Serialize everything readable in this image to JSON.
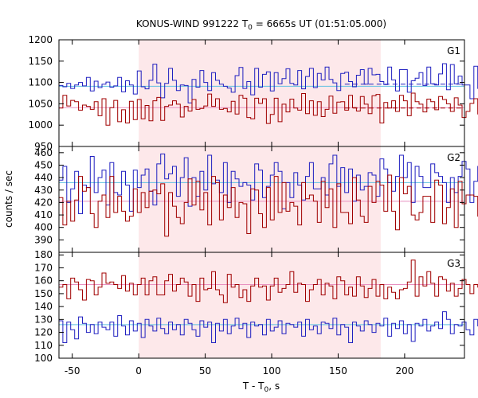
{
  "title": {
    "main": "KONUS-WIND 991222 T",
    "sub": "0",
    "rest": " = 6665s UT (01:51:05.000)"
  },
  "ylabel": "counts / sec",
  "xlabel": {
    "main": "T - T",
    "sub": "0",
    "rest": ", s"
  },
  "colors": {
    "blue": "#2020c0",
    "red": "#a00000",
    "cyan": "#60c0e0",
    "pink": "#e890c0",
    "shade": "#fde8ea"
  },
  "chart_data": {
    "type": "line",
    "x_ticks": [
      -50,
      0,
      50,
      100,
      150,
      200
    ],
    "xlim": [
      -60,
      245
    ],
    "shade_interval": [
      0,
      182
    ],
    "panels": [
      {
        "label": "G1",
        "ylim": [
          950,
          1200
        ],
        "yticks": [
          950,
          1000,
          1050,
          1100,
          1150,
          1200
        ],
        "show_top_tick": true,
        "series": [
          {
            "color": "blue",
            "step": 2.944,
            "start": -60,
            "values": [
              1093,
              1090,
              1098,
              1086,
              1094,
              1100,
              1092,
              1112,
              1080,
              1103,
              1088,
              1096,
              1101,
              1089,
              1092,
              1112,
              1078,
              1104,
              1094,
              1073,
              1127,
              1090,
              1085,
              1105,
              1143,
              1099,
              1064,
              1098,
              1133,
              1105,
              1081,
              1094,
              1093,
              1052,
              1107,
              1089,
              1128,
              1100,
              1081,
              1123,
              1105,
              1096,
              1091,
              1087,
              1077,
              1116,
              1135,
              1086,
              1102,
              1071,
              1133,
              1089,
              1119,
              1125,
              1080,
              1123,
              1097,
              1109,
              1132,
              1098,
              1094,
              1128,
              1085,
              1114,
              1133,
              1088,
              1121,
              1106,
              1136,
              1107,
              1099,
              1081,
              1121,
              1124,
              1102,
              1090,
              1117,
              1130,
              1096,
              1133,
              1118,
              1119,
              1102,
              1095,
              1136,
              1106,
              1080,
              1130,
              1130,
              1077,
              1104,
              1110,
              1123,
              1093,
              1136,
              1097,
              1094,
              1120,
              1144,
              1083,
              1142,
              1097,
              1115,
              1094,
              1094,
              1062,
              1138,
              1086,
              1120,
              1097
            ]
          },
          {
            "color": "red",
            "step": 2.944,
            "start": -60,
            "values": [
              1040,
              1070,
              1045,
              1058,
              1055,
              1035,
              1047,
              1044,
              1037,
              1055,
              1022,
              1062,
              1000,
              1041,
              1058,
              1008,
              1036,
              1005,
              1056,
              1013,
              1060,
              1015,
              1046,
              1010,
              1057,
              1065,
              1011,
              1044,
              1047,
              1057,
              1049,
              1019,
              1044,
              1033,
              1060,
              1037,
              1039,
              1045,
              1073,
              1044,
              1062,
              1037,
              1039,
              1031,
              1056,
              1026,
              1070,
              1063,
              1018,
              1015,
              1063,
              1051,
              1062,
              1004,
              1025,
              1063,
              1008,
              1049,
              1031,
              1061,
              1040,
              1035,
              1074,
              1027,
              1057,
              1023,
              1055,
              1020,
              1037,
              1068,
              1028,
              1054,
              1055,
              1035,
              1070,
              1041,
              1033,
              1067,
              1049,
              1027,
              1069,
              1072,
              1005,
              1053,
              1040,
              1057,
              1032,
              1070,
              1057,
              1022,
              1075,
              1055,
              1049,
              1031,
              1061,
              1055,
              1036,
              1067,
              1060,
              1050,
              1032,
              1064,
              1047,
              1018,
              1032,
              1051,
              1062,
              1026,
              1040,
              1052
            ]
          }
        ],
        "mean_lines": [
          {
            "color": "cyan",
            "value": 1091,
            "range": [
              -60,
              245
            ],
            "style": "solid"
          },
          {
            "color": "blue",
            "value": 1096,
            "range": [
              155,
              245
            ],
            "style": "dashed"
          },
          {
            "color": "pink",
            "value": 1041,
            "range": [
              -60,
              245
            ],
            "style": "solid"
          },
          {
            "color": "red",
            "value": 1040,
            "range": [
              155,
              245
            ],
            "style": "dashed"
          }
        ]
      },
      {
        "label": "G2",
        "ylim": [
          380,
          465
        ],
        "yticks": [
          390,
          400,
          410,
          420,
          430,
          440,
          450,
          460
        ],
        "show_top_tick": false,
        "series": [
          {
            "color": "blue",
            "step": 2.944,
            "start": -60,
            "values": [
              438,
              449,
              420,
              431,
              445,
              411,
              434,
              432,
              457,
              428,
              440,
              446,
              418,
              452,
              428,
              426,
              445,
              434,
              413,
              446,
              432,
              442,
              447,
              429,
              418,
              451,
              459,
              439,
              443,
              449,
              425,
              440,
              456,
              417,
              440,
              425,
              445,
              430,
              458,
              435,
              438,
              428,
              452,
              420,
              445,
              439,
              433,
              436,
              434,
              422,
              451,
              446,
              424,
              433,
              442,
              452,
              445,
              415,
              436,
              424,
              444,
              434,
              422,
              441,
              452,
              431,
              431,
              440,
              426,
              451,
              458,
              433,
              448,
              428,
              447,
              421,
              442,
              430,
              433,
              444,
              442,
              425,
              455,
              447,
              436,
              429,
              441,
              458,
              440,
              452,
              420,
              449,
              441,
              432,
              432,
              451,
              444,
              441,
              436,
              420,
              440,
              428,
              441,
              453,
              447,
              420,
              437,
              449,
              431,
              426
            ]
          },
          {
            "color": "red",
            "step": 2.944,
            "start": -60,
            "values": [
              424,
              402,
              421,
              405,
              422,
              441,
              429,
              432,
              411,
              400,
              421,
              426,
              408,
              441,
              412,
              425,
              413,
              405,
              409,
              431,
              412,
              428,
              416,
              429,
              430,
              427,
              435,
              393,
              428,
              417,
              408,
              403,
              420,
              439,
              418,
              437,
              414,
              428,
              402,
              441,
              436,
              406,
              426,
              416,
              432,
              408,
              420,
              419,
              395,
              431,
              430,
              411,
              400,
              432,
              406,
              441,
              412,
              436,
              413,
              420,
              417,
              402,
              436,
              423,
              426,
              421,
              404,
              437,
              416,
              431,
              400,
              435,
              412,
              412,
              403,
              440,
              422,
              409,
              404,
              433,
              420,
              437,
              434,
              413,
              442,
              413,
              398,
              440,
              427,
              433,
              410,
              406,
              412,
              425,
              425,
              404,
              438,
              434,
              403,
              416,
              431,
              400,
              437,
              419,
              426,
              426,
              425,
              409,
              437,
              427
            ]
          }
        ],
        "mean_lines": [
          {
            "color": "cyan",
            "value": 436,
            "range": [
              -60,
              245
            ],
            "style": "solid"
          },
          {
            "color": "pink",
            "value": 421,
            "range": [
              -60,
              245
            ],
            "style": "solid"
          }
        ]
      },
      {
        "label": "G3",
        "ylim": [
          100,
          182
        ],
        "yticks": [
          100,
          110,
          120,
          130,
          140,
          150,
          160,
          170,
          180
        ],
        "show_top_tick": true,
        "series": [
          {
            "color": "red",
            "step": 2.944,
            "start": -60,
            "values": [
              155,
              157,
              146,
              162,
              159,
              153,
              145,
              161,
              160,
              149,
              155,
              166,
              158,
              159,
              157,
              154,
              164,
              152,
              158,
              149,
              157,
              162,
              149,
              160,
              163,
              149,
              149,
              160,
              165,
              152,
              157,
              162,
              159,
              148,
              157,
              144,
              162,
              153,
              154,
              167,
              153,
              149,
              143,
              165,
              155,
              157,
              147,
              153,
              144,
              156,
              162,
              155,
              156,
              145,
              156,
              162,
              151,
              154,
              157,
              167,
              151,
              158,
              157,
              144,
              153,
              157,
              161,
              149,
              158,
              156,
              146,
              163,
              160,
              149,
              155,
              148,
              163,
              156,
              147,
              154,
              161,
              148,
              157,
              146,
              155,
              151,
              146,
              153,
              154,
              159,
              176,
              148,
              163,
              156,
              167,
              158,
              148,
              163,
              161,
              152,
              158,
              148,
              154,
              161,
              157,
              150,
              157,
              155,
              154,
              147
            ]
          },
          {
            "color": "blue",
            "step": 2.944,
            "start": -60,
            "values": [
              129,
              112,
              128,
              122,
              115,
              132,
              127,
              120,
              126,
              119,
              128,
              124,
              122,
              128,
              117,
              133,
              125,
              118,
              129,
              121,
              127,
              116,
              130,
              125,
              121,
              131,
              123,
              119,
              128,
              122,
              126,
              118,
              130,
              127,
              122,
              117,
              129,
              124,
              128,
              112,
              127,
              121,
              130,
              119,
              125,
              131,
              123,
              127,
              116,
              128,
              125,
              126,
              118,
              130,
              121,
              124,
              129,
              119,
              127,
              126,
              124,
              128,
              117,
              130,
              122,
              125,
              119,
              128,
              127,
              123,
              131,
              118,
              126,
              124,
              112,
              128,
              125,
              121,
              129,
              126,
              120,
              127,
              125,
              131,
              117,
              127,
              123,
              129,
              119,
              126,
              113,
              127,
              125,
              130,
              121,
              125,
              128,
              123,
              136,
              130,
              119,
              126,
              125,
              128,
              122,
              118,
              130,
              125,
              123,
              122
            ]
          }
        ],
        "mean_lines": [
          {
            "color": "pink",
            "value": 157,
            "range": [
              -60,
              245
            ],
            "style": "solid"
          },
          {
            "color": "cyan",
            "value": 126,
            "range": [
              -60,
              245
            ],
            "style": "solid"
          }
        ]
      }
    ]
  }
}
